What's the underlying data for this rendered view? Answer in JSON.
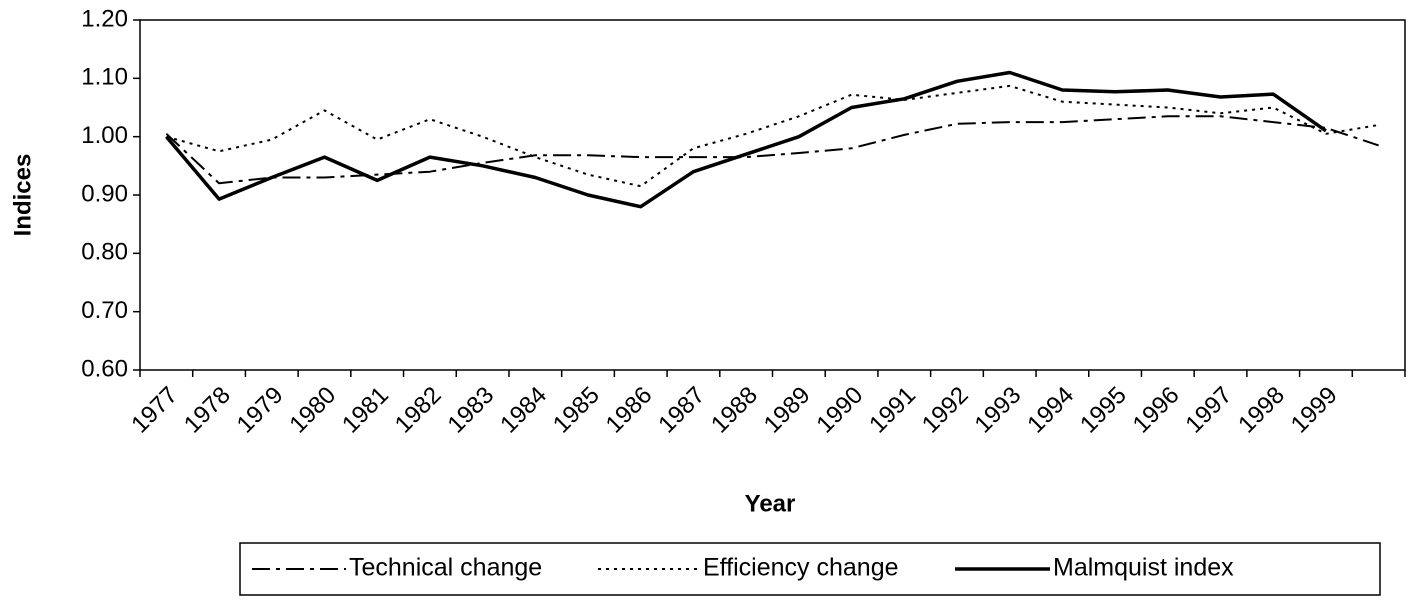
{
  "chart_data": {
    "type": "line",
    "x_label": "Year",
    "y_label": "Indices",
    "categories": [
      "1977",
      "1978",
      "1979",
      "1980",
      "1981",
      "1982",
      "1983",
      "1984",
      "1985",
      "1986",
      "1987",
      "1988",
      "1989",
      "1990",
      "1991",
      "1992",
      "1993",
      "1994",
      "1995",
      "1996",
      "1997",
      "1998",
      "1999",
      null
    ],
    "series": [
      {
        "name": "Technical change",
        "color": "#000000",
        "dash": "dashdot",
        "values": [
          1.005,
          0.92,
          0.93,
          0.93,
          0.935,
          0.94,
          0.955,
          0.968,
          0.968,
          0.965,
          0.965,
          0.965,
          0.972,
          0.98,
          1.003,
          1.022,
          1.025,
          1.025,
          1.03,
          1.035,
          1.035,
          1.025,
          1.015,
          0.985
        ]
      },
      {
        "name": "Efficiency change",
        "color": "#000000",
        "dash": "dotted",
        "values": [
          1.0,
          0.975,
          0.995,
          1.045,
          0.995,
          1.03,
          1.0,
          0.965,
          0.935,
          0.915,
          0.98,
          1.005,
          1.035,
          1.072,
          1.063,
          1.075,
          1.087,
          1.06,
          1.055,
          1.05,
          1.04,
          1.05,
          1.005,
          1.02
        ]
      },
      {
        "name": "Malmquist index",
        "color": "#000000",
        "dash": "solid",
        "values": [
          1.0,
          0.893,
          0.93,
          0.965,
          0.925,
          0.965,
          0.95,
          0.93,
          0.9,
          0.88,
          0.94,
          0.97,
          1.0,
          1.05,
          1.065,
          1.095,
          1.11,
          1.08,
          1.077,
          1.08,
          1.068,
          1.073,
          1.01,
          null
        ]
      }
    ],
    "ylim": [
      0.6,
      1.2
    ],
    "yticks": [
      {
        "value": 0.6,
        "label": "0.60"
      },
      {
        "value": 0.7,
        "label": "0.70"
      },
      {
        "value": 0.8,
        "label": "0.80"
      },
      {
        "value": 0.9,
        "label": "0.90"
      },
      {
        "value": 1.0,
        "label": "1.00"
      },
      {
        "value": 1.1,
        "label": "1.10"
      },
      {
        "value": 1.2,
        "label": "1.20"
      }
    ],
    "grid": false,
    "legend": "bottom"
  }
}
